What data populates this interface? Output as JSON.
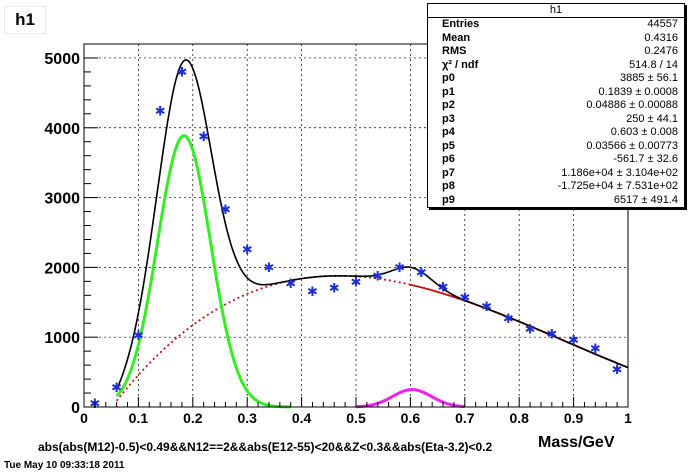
{
  "histogram_title": "h1",
  "stats_box": {
    "title": "h1",
    "rows": [
      {
        "label": "Entries",
        "value": "44557"
      },
      {
        "label": "Mean",
        "value": "0.4316"
      },
      {
        "label": "RMS",
        "value": "0.2476"
      },
      {
        "label": "χ² / ndf",
        "value": "514.8 / 14"
      },
      {
        "label": "p0",
        "value": "3885 ± 56.1"
      },
      {
        "label": "p1",
        "value": "0.1839 ± 0.0008"
      },
      {
        "label": "p2",
        "value": "0.04886 ± 0.00088"
      },
      {
        "label": "p3",
        "value": "250 ± 44.1"
      },
      {
        "label": "p4",
        "value": "0.603 ± 0.008"
      },
      {
        "label": "p5",
        "value": "0.03566 ± 0.00773"
      },
      {
        "label": "p6",
        "value": "-561.7 ± 32.6"
      },
      {
        "label": "p7",
        "value": "1.186e+04 ± 3.104e+02"
      },
      {
        "label": "p8",
        "value": "-1.725e+04 ± 7.531e+02"
      },
      {
        "label": "p9",
        "value": "6517 ± 491.4"
      }
    ]
  },
  "x_axis_label": "Mass/GeV",
  "cut_label": "abs(abs(M12)-0.5)<0.49&&N12==2&&abs(E12-55)<20&&Z<0.3&&abs(Eta-3.2)<0.2",
  "timestamp": "Tue May 10 09:33:18 2011",
  "chart_data": {
    "type": "scatter",
    "xlim": [
      0,
      1
    ],
    "ylim": [
      0,
      5200
    ],
    "x_ticks": [
      "0",
      "0.1",
      "0.2",
      "0.3",
      "0.4",
      "0.5",
      "0.6",
      "0.7",
      "0.8",
      "0.9",
      "1"
    ],
    "y_ticks": [
      "0",
      "1000",
      "2000",
      "3000",
      "4000",
      "5000"
    ],
    "grid": true,
    "colors": {
      "points": "#1f2fd6",
      "total_fit": "#000000",
      "gauss1": "#33ee22",
      "gauss2": "#ee22ee",
      "background": "#cc1111"
    },
    "points": [
      {
        "x": 0.02,
        "y": 40
      },
      {
        "x": 0.06,
        "y": 270
      },
      {
        "x": 0.1,
        "y": 1020
      },
      {
        "x": 0.14,
        "y": 4230
      },
      {
        "x": 0.18,
        "y": 4790
      },
      {
        "x": 0.22,
        "y": 3870
      },
      {
        "x": 0.26,
        "y": 2820
      },
      {
        "x": 0.3,
        "y": 2250
      },
      {
        "x": 0.34,
        "y": 1990
      },
      {
        "x": 0.38,
        "y": 1760
      },
      {
        "x": 0.42,
        "y": 1650
      },
      {
        "x": 0.46,
        "y": 1700
      },
      {
        "x": 0.5,
        "y": 1780
      },
      {
        "x": 0.54,
        "y": 1870
      },
      {
        "x": 0.58,
        "y": 1990
      },
      {
        "x": 0.62,
        "y": 1920
      },
      {
        "x": 0.66,
        "y": 1710
      },
      {
        "x": 0.7,
        "y": 1560
      },
      {
        "x": 0.74,
        "y": 1430
      },
      {
        "x": 0.78,
        "y": 1260
      },
      {
        "x": 0.82,
        "y": 1110
      },
      {
        "x": 0.86,
        "y": 1040
      },
      {
        "x": 0.9,
        "y": 950
      },
      {
        "x": 0.94,
        "y": 830
      },
      {
        "x": 0.98,
        "y": 530
      }
    ],
    "fit_params": {
      "p0": 3885,
      "p1": 0.1839,
      "p2": 0.04886,
      "p3": 250,
      "p4": 0.603,
      "p5": 0.03566,
      "p6": -561.7,
      "p7": 11860,
      "p8": -17250,
      "p9": 6517
    }
  }
}
